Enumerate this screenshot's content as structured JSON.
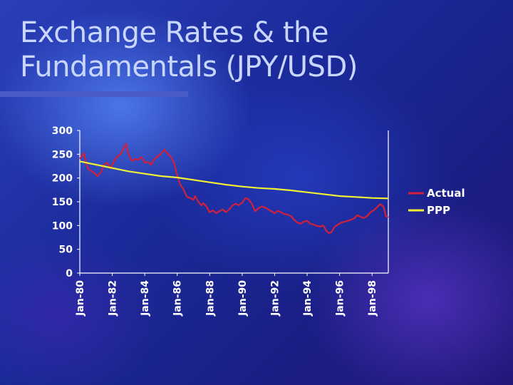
{
  "slide": {
    "title_line1": "Exchange Rates & the",
    "title_line2": "Fundamentals (JPY/USD)"
  },
  "chart_data": {
    "type": "line",
    "title": "",
    "xlabel": "",
    "ylabel": "",
    "ylim": [
      0,
      300
    ],
    "yticks": [
      0,
      50,
      100,
      150,
      200,
      250,
      300
    ],
    "xticks": [
      "Jan-80",
      "Jan-82",
      "Jan-84",
      "Jan-86",
      "Jan-88",
      "Jan-90",
      "Jan-92",
      "Jan-94",
      "Jan-96",
      "Jan-98"
    ],
    "xrange": [
      1980.0,
      1999.0
    ],
    "grid": false,
    "legend_position": "right",
    "series": [
      {
        "name": "Actual",
        "color": "#d21f3c",
        "points": [
          [
            1980.0,
            240
          ],
          [
            1980.15,
            248
          ],
          [
            1980.25,
            252
          ],
          [
            1980.35,
            238
          ],
          [
            1980.5,
            220
          ],
          [
            1980.7,
            215
          ],
          [
            1980.9,
            210
          ],
          [
            1981.1,
            204
          ],
          [
            1981.3,
            212
          ],
          [
            1981.5,
            228
          ],
          [
            1981.7,
            232
          ],
          [
            1981.9,
            220
          ],
          [
            1982.1,
            235
          ],
          [
            1982.3,
            245
          ],
          [
            1982.5,
            250
          ],
          [
            1982.7,
            262
          ],
          [
            1982.85,
            272
          ],
          [
            1983.0,
            250
          ],
          [
            1983.2,
            236
          ],
          [
            1983.4,
            240
          ],
          [
            1983.6,
            238
          ],
          [
            1983.8,
            244
          ],
          [
            1984.0,
            232
          ],
          [
            1984.2,
            234
          ],
          [
            1984.4,
            228
          ],
          [
            1984.6,
            240
          ],
          [
            1984.8,
            246
          ],
          [
            1985.0,
            250
          ],
          [
            1985.2,
            260
          ],
          [
            1985.4,
            252
          ],
          [
            1985.6,
            245
          ],
          [
            1985.8,
            232
          ],
          [
            1986.0,
            205
          ],
          [
            1986.2,
            185
          ],
          [
            1986.4,
            175
          ],
          [
            1986.6,
            160
          ],
          [
            1986.8,
            158
          ],
          [
            1987.0,
            154
          ],
          [
            1987.1,
            162
          ],
          [
            1987.3,
            150
          ],
          [
            1987.5,
            142
          ],
          [
            1987.6,
            147
          ],
          [
            1987.8,
            140
          ],
          [
            1988.0,
            128
          ],
          [
            1988.2,
            132
          ],
          [
            1988.4,
            126
          ],
          [
            1988.6,
            130
          ],
          [
            1988.8,
            134
          ],
          [
            1989.0,
            128
          ],
          [
            1989.2,
            134
          ],
          [
            1989.4,
            142
          ],
          [
            1989.6,
            146
          ],
          [
            1989.8,
            143
          ],
          [
            1990.0,
            148
          ],
          [
            1990.2,
            158
          ],
          [
            1990.4,
            155
          ],
          [
            1990.6,
            145
          ],
          [
            1990.8,
            130
          ],
          [
            1991.0,
            136
          ],
          [
            1991.2,
            140
          ],
          [
            1991.4,
            138
          ],
          [
            1991.6,
            134
          ],
          [
            1991.8,
            130
          ],
          [
            1992.0,
            126
          ],
          [
            1992.2,
            131
          ],
          [
            1992.4,
            128
          ],
          [
            1992.6,
            124
          ],
          [
            1992.8,
            123
          ],
          [
            1993.0,
            120
          ],
          [
            1993.2,
            112
          ],
          [
            1993.4,
            106
          ],
          [
            1993.6,
            104
          ],
          [
            1993.8,
            108
          ],
          [
            1994.0,
            110
          ],
          [
            1994.2,
            104
          ],
          [
            1994.4,
            102
          ],
          [
            1994.6,
            99
          ],
          [
            1994.8,
            98
          ],
          [
            1995.0,
            100
          ],
          [
            1995.2,
            88
          ],
          [
            1995.35,
            84
          ],
          [
            1995.5,
            86
          ],
          [
            1995.7,
            98
          ],
          [
            1995.9,
            102
          ],
          [
            1996.1,
            106
          ],
          [
            1996.3,
            108
          ],
          [
            1996.5,
            110
          ],
          [
            1996.7,
            112
          ],
          [
            1996.9,
            115
          ],
          [
            1997.1,
            122
          ],
          [
            1997.3,
            118
          ],
          [
            1997.5,
            116
          ],
          [
            1997.7,
            120
          ],
          [
            1997.9,
            128
          ],
          [
            1998.1,
            132
          ],
          [
            1998.3,
            138
          ],
          [
            1998.5,
            145
          ],
          [
            1998.7,
            140
          ],
          [
            1998.85,
            120
          ],
          [
            1999.0,
            117
          ]
        ]
      },
      {
        "name": "PPP",
        "color": "#f2f032",
        "points": [
          [
            1980.0,
            235
          ],
          [
            1981.0,
            228
          ],
          [
            1982.0,
            221
          ],
          [
            1983.0,
            214
          ],
          [
            1984.0,
            209
          ],
          [
            1985.0,
            204
          ],
          [
            1986.0,
            201
          ],
          [
            1987.0,
            196
          ],
          [
            1988.0,
            191
          ],
          [
            1989.0,
            186
          ],
          [
            1990.0,
            182
          ],
          [
            1991.0,
            179
          ],
          [
            1992.0,
            177
          ],
          [
            1993.0,
            174
          ],
          [
            1994.0,
            170
          ],
          [
            1995.0,
            166
          ],
          [
            1996.0,
            162
          ],
          [
            1997.0,
            160
          ],
          [
            1998.0,
            158
          ],
          [
            1999.0,
            157
          ]
        ]
      }
    ]
  }
}
